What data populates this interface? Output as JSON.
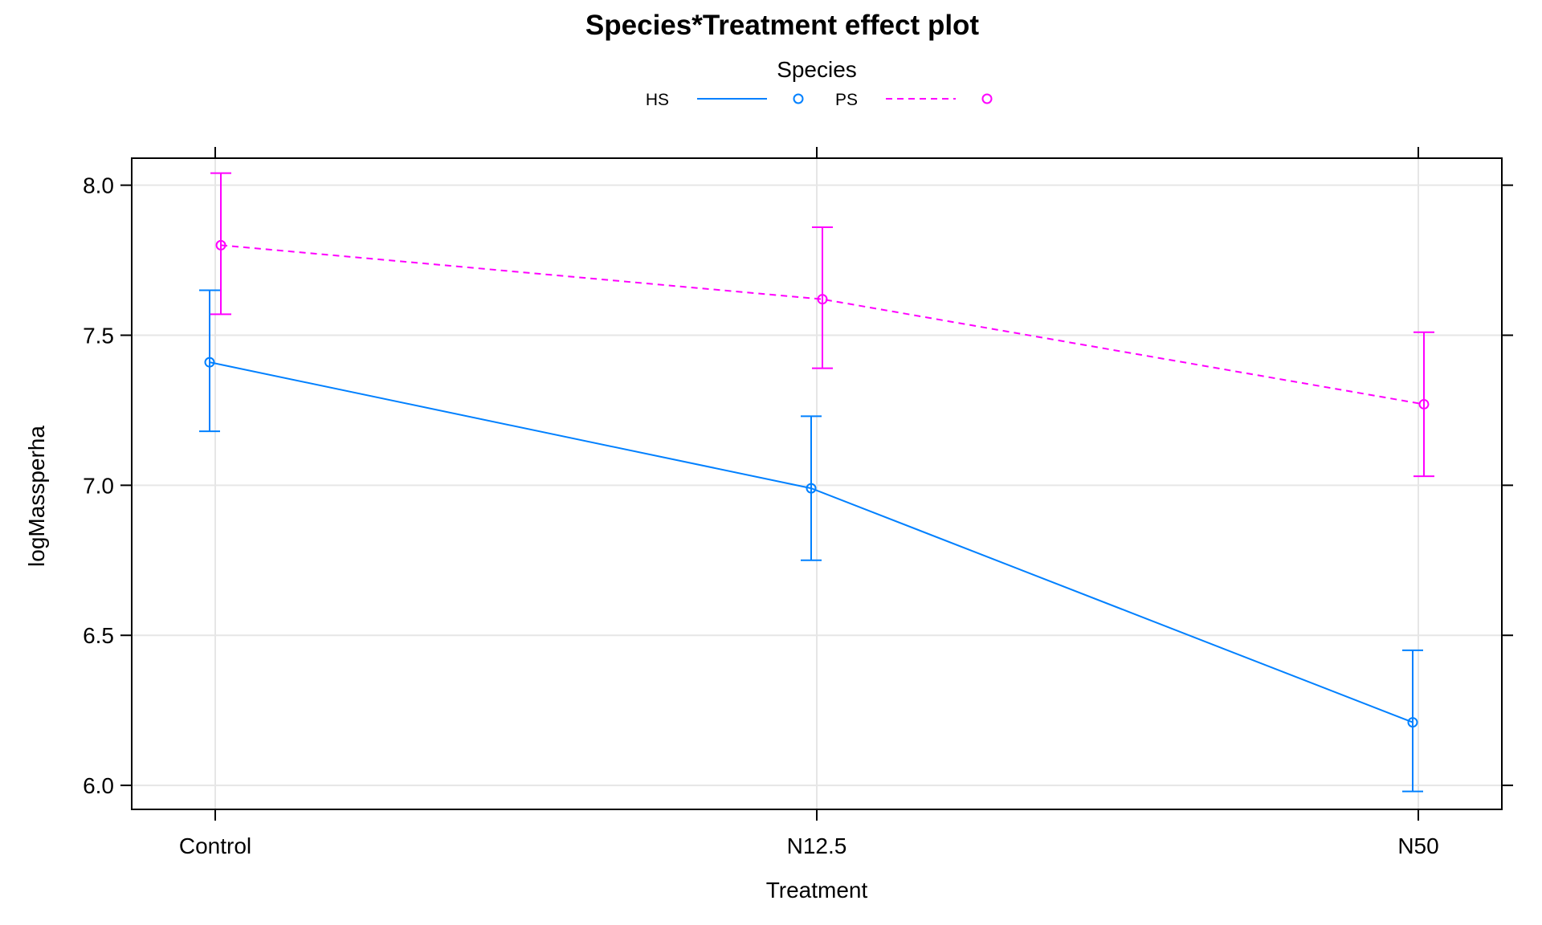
{
  "chart_data": {
    "type": "line",
    "title": "Species*Treatment effect plot",
    "xlabel": "Treatment",
    "ylabel": "logMassperha",
    "categories": [
      "Control",
      "N12.5",
      "N50"
    ],
    "ylim": [
      5.92,
      8.09
    ],
    "yticks": [
      6.0,
      6.5,
      7.0,
      7.5,
      8.0
    ],
    "ytick_labels": [
      "6.0",
      "6.5",
      "7.0",
      "7.5",
      "8.0"
    ],
    "grid": true,
    "legend": {
      "title": "Species",
      "placement": "top-center"
    },
    "series": [
      {
        "name": "HS",
        "color": "#0080ff",
        "line_style": "solid",
        "values": [
          7.41,
          6.99,
          6.21
        ],
        "lower": [
          7.18,
          6.75,
          5.98
        ],
        "upper": [
          7.65,
          7.23,
          6.45
        ]
      },
      {
        "name": "PS",
        "color": "#ff00ff",
        "line_style": "dashed",
        "values": [
          7.8,
          7.62,
          7.27
        ],
        "lower": [
          7.57,
          7.39,
          7.03
        ],
        "upper": [
          8.04,
          7.86,
          7.51
        ]
      }
    ]
  }
}
